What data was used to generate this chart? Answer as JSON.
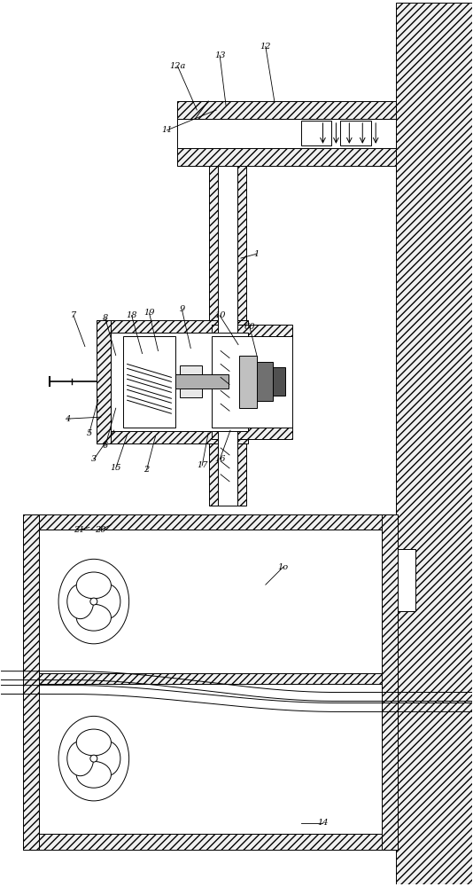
{
  "bg_color": "#ffffff",
  "line_color": "#000000",
  "fig_width": 5.34,
  "fig_height": 10.0,
  "dpi": 100
}
